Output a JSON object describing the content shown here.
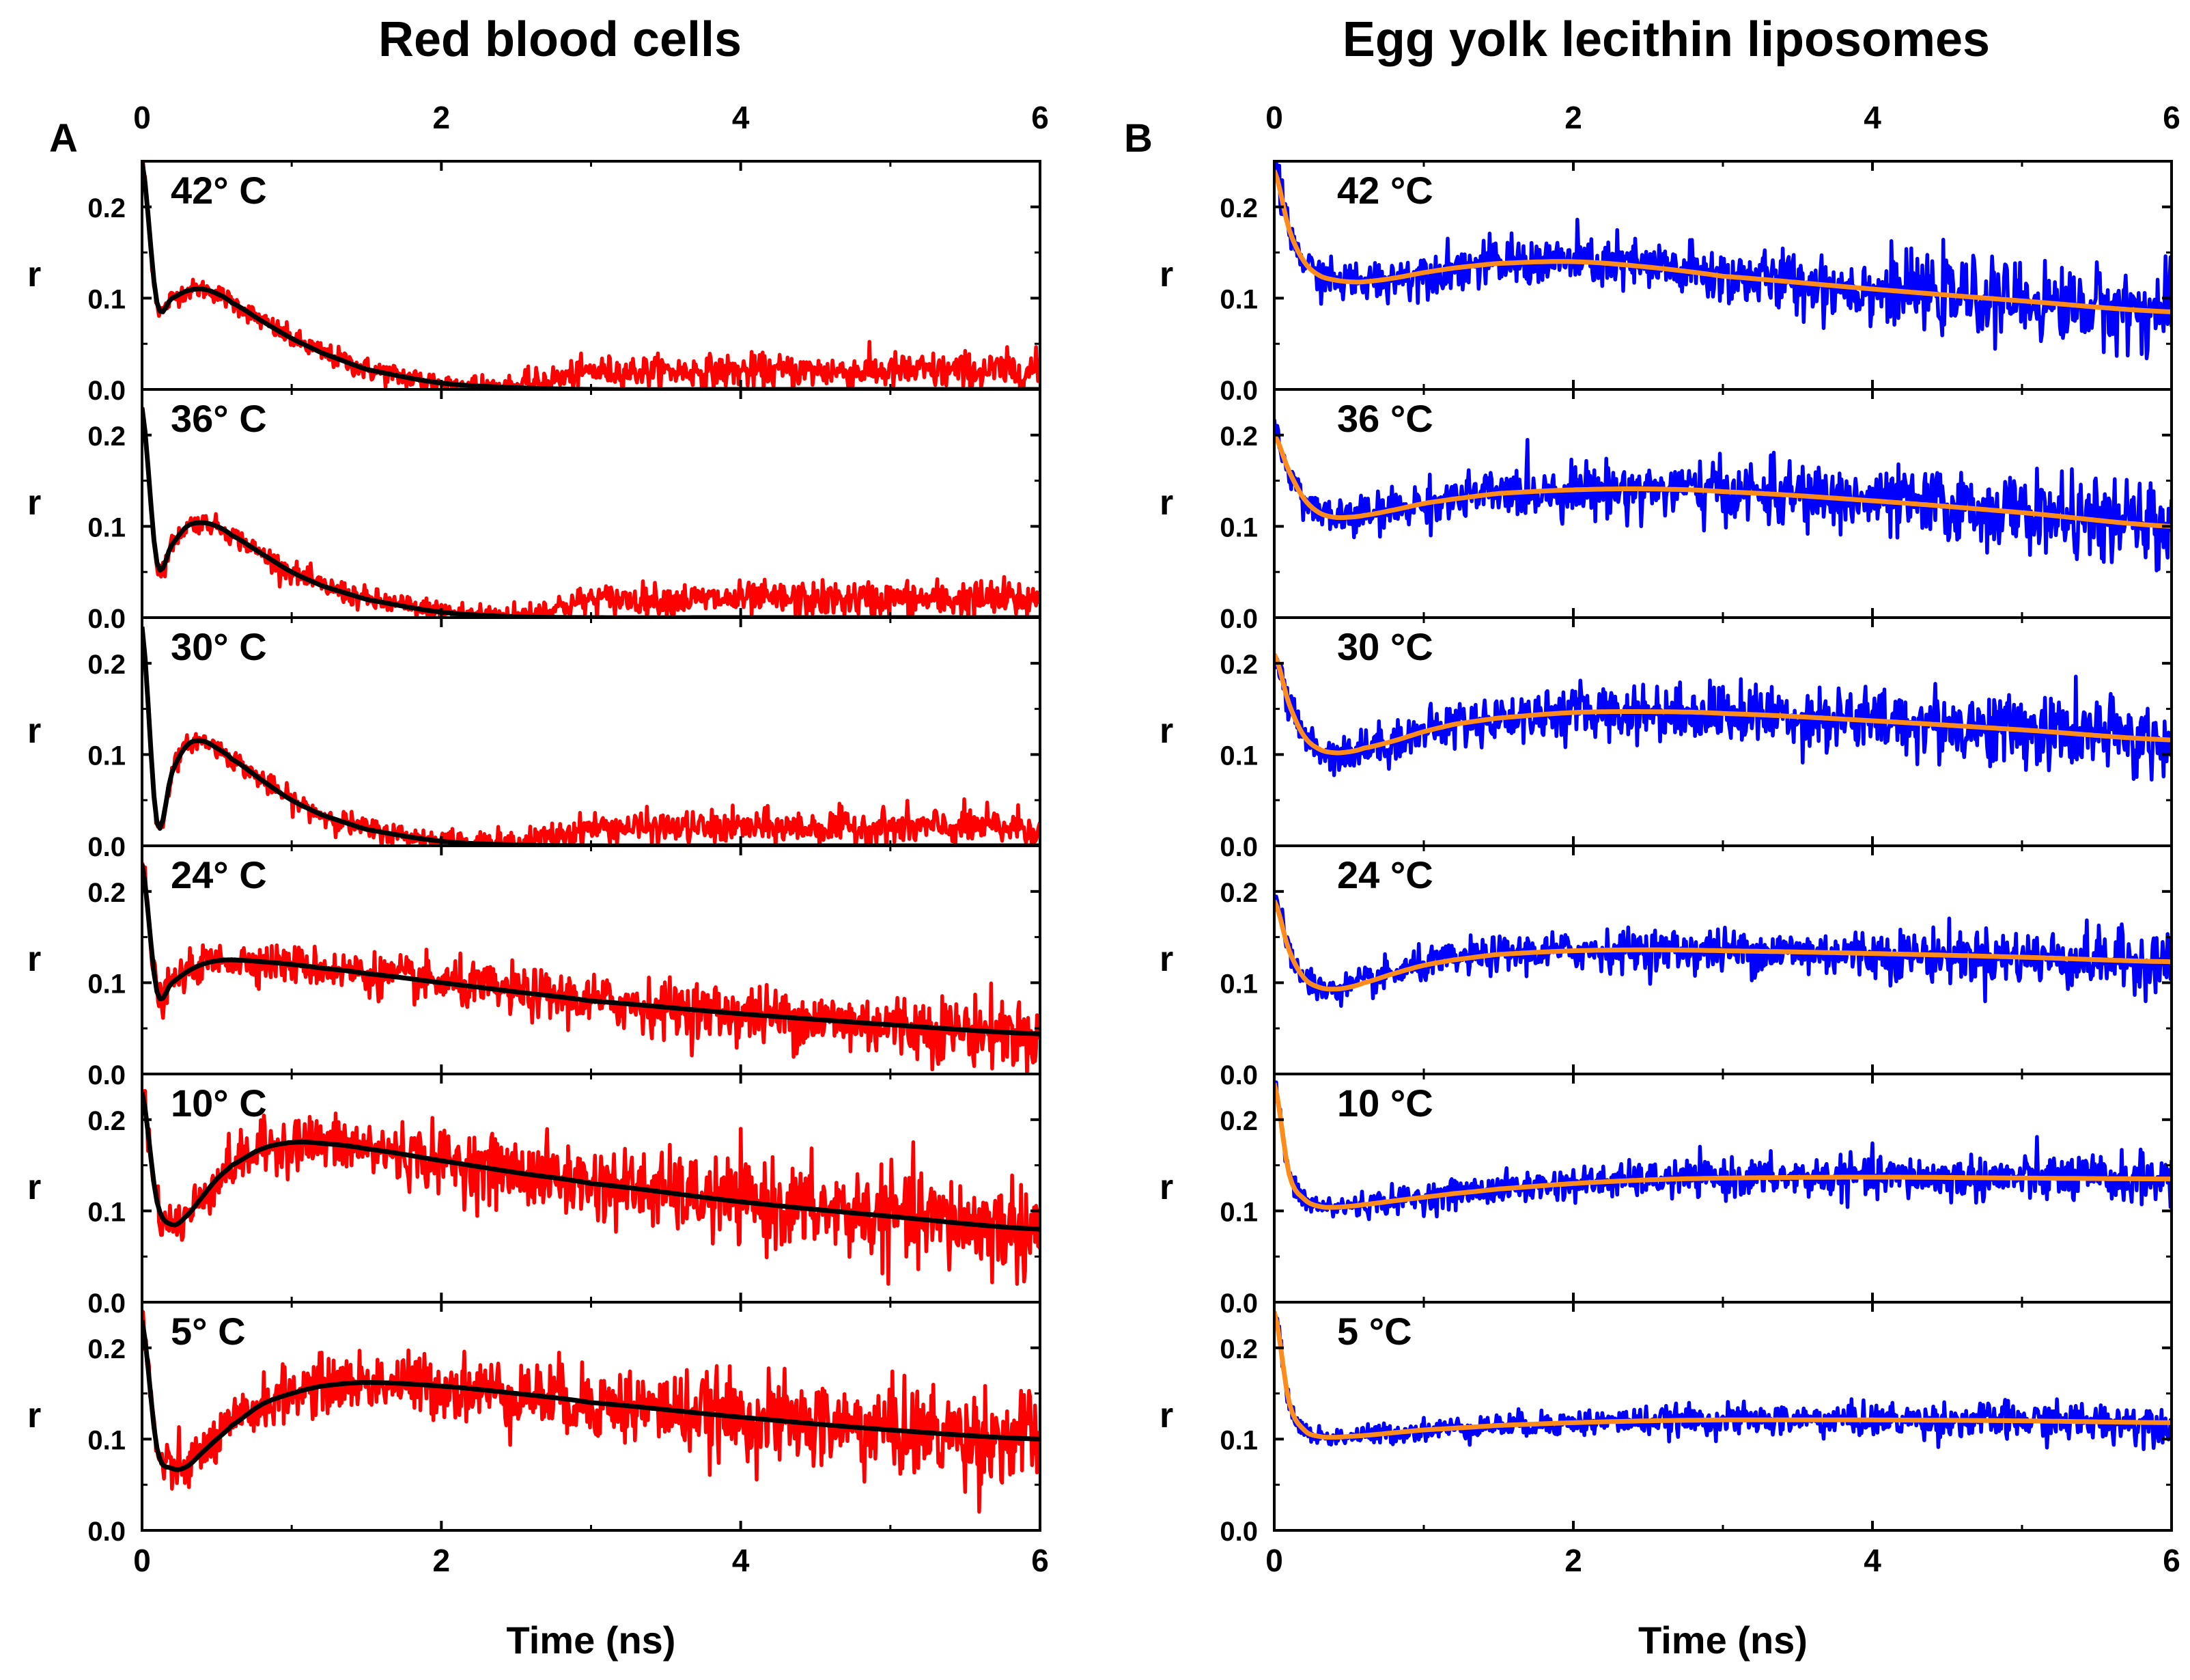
{
  "panels": [
    {
      "letter": "A",
      "title": "Red blood cells",
      "xlabel": "Time (ns)",
      "ylabel": "r",
      "data_color": "#ff0000",
      "fit_color": "#000000",
      "labels": [
        "42° C",
        "36° C",
        "30° C",
        "24° C",
        "10° C",
        "5° C"
      ]
    },
    {
      "letter": "B",
      "title": "Egg yolk lecithin liposomes",
      "xlabel": "Time (ns)",
      "ylabel": "r",
      "data_color": "#0000ff",
      "fit_color": "#ff8c1a",
      "labels": [
        "42 °C",
        "36 °C",
        "30 °C",
        "24 °C",
        "10 °C",
        "5 °C"
      ]
    }
  ],
  "chart_data": [
    {
      "type": "line",
      "title": "Red blood cells",
      "xlabel": "Time (ns)",
      "ylabel": "r",
      "xlim": [
        0,
        6
      ],
      "ylim": [
        0,
        0.25
      ],
      "xticks": [
        0,
        2,
        4,
        6
      ],
      "yticks": [
        0.0,
        0.1,
        0.2
      ],
      "fit_t": [
        0,
        0.1,
        0.2,
        0.3,
        0.4,
        0.5,
        0.6,
        0.8,
        1.0,
        1.2,
        1.5,
        2.0,
        2.5,
        3.0,
        4.0,
        5.0,
        6.0
      ],
      "series": [
        {
          "name": "42° C",
          "noise": 0.02,
          "fit": [
            0.25,
            0.095,
            0.1,
            0.108,
            0.11,
            0.105,
            0.095,
            0.075,
            0.056,
            0.04,
            0.022,
            0.007,
            0.002,
            0.0,
            0.0,
            0.0,
            0.0
          ],
          "data_offset_late": 0.02
        },
        {
          "name": "36° C",
          "noise": 0.02,
          "fit": [
            0.23,
            0.06,
            0.08,
            0.1,
            0.104,
            0.1,
            0.09,
            0.07,
            0.05,
            0.035,
            0.02,
            0.006,
            0.001,
            0.0,
            0.0,
            0.0,
            0.0
          ],
          "data_offset_late": 0.02
        },
        {
          "name": "30° C",
          "noise": 0.02,
          "fit": [
            0.24,
            0.025,
            0.08,
            0.11,
            0.115,
            0.107,
            0.095,
            0.072,
            0.05,
            0.034,
            0.018,
            0.005,
            0.001,
            0.0,
            0.0,
            0.0,
            0.0
          ],
          "data_offset_late": 0.02
        },
        {
          "name": "24° C",
          "noise": 0.035,
          "fit": [
            0.23,
            0.09,
            0.1,
            0.112,
            0.12,
            0.124,
            0.125,
            0.123,
            0.12,
            0.116,
            0.11,
            0.1,
            0.09,
            0.08,
            0.066,
            0.054,
            0.044
          ],
          "data_offset_late": 0.0
        },
        {
          "name": "10° C",
          "noise": 0.05,
          "fit": [
            0.23,
            0.11,
            0.085,
            0.095,
            0.115,
            0.135,
            0.15,
            0.168,
            0.175,
            0.174,
            0.168,
            0.155,
            0.142,
            0.13,
            0.11,
            0.094,
            0.08
          ],
          "data_offset_late": 0.0
        },
        {
          "name": "5° C",
          "noise": 0.05,
          "fit": [
            0.23,
            0.09,
            0.068,
            0.07,
            0.085,
            0.1,
            0.115,
            0.138,
            0.15,
            0.158,
            0.162,
            0.158,
            0.15,
            0.14,
            0.124,
            0.11,
            0.1
          ],
          "data_offset_late": 0.0
        }
      ]
    },
    {
      "type": "line",
      "title": "Egg yolk lecithin liposomes",
      "xlabel": "Time (ns)",
      "ylabel": "r",
      "xlim": [
        0,
        6
      ],
      "ylim": [
        0,
        0.25
      ],
      "xticks": [
        0,
        2,
        4,
        6
      ],
      "yticks": [
        0.0,
        0.1,
        0.2
      ],
      "fit_t": [
        0,
        0.1,
        0.2,
        0.3,
        0.4,
        0.5,
        0.6,
        0.8,
        1.0,
        1.2,
        1.5,
        2.0,
        2.5,
        3.0,
        4.0,
        5.0,
        6.0
      ],
      "series": [
        {
          "name": "42 °C",
          "noise": 0.04,
          "fit": [
            0.24,
            0.175,
            0.14,
            0.125,
            0.12,
            0.118,
            0.118,
            0.122,
            0.128,
            0.133,
            0.138,
            0.14,
            0.134,
            0.124,
            0.11,
            0.097,
            0.085
          ],
          "data_offset_late": 0.0
        },
        {
          "name": "36 °C",
          "noise": 0.04,
          "fit": [
            0.2,
            0.16,
            0.13,
            0.115,
            0.11,
            0.11,
            0.112,
            0.118,
            0.125,
            0.13,
            0.136,
            0.14,
            0.141,
            0.138,
            0.128,
            0.115,
            0.1
          ],
          "data_offset_late": 0.0
        },
        {
          "name": "30 °C",
          "noise": 0.04,
          "fit": [
            0.21,
            0.155,
            0.12,
            0.106,
            0.102,
            0.103,
            0.107,
            0.115,
            0.125,
            0.133,
            0.14,
            0.146,
            0.147,
            0.145,
            0.137,
            0.127,
            0.116
          ],
          "data_offset_late": 0.0
        },
        {
          "name": "24 °C",
          "noise": 0.03,
          "fit": [
            0.19,
            0.135,
            0.105,
            0.095,
            0.093,
            0.095,
            0.1,
            0.11,
            0.119,
            0.125,
            0.131,
            0.135,
            0.136,
            0.135,
            0.132,
            0.128,
            0.123
          ],
          "data_offset_late": 0.0
        },
        {
          "name": "10 °C",
          "noise": 0.025,
          "fit": [
            0.24,
            0.14,
            0.113,
            0.105,
            0.104,
            0.105,
            0.107,
            0.111,
            0.115,
            0.119,
            0.124,
            0.13,
            0.134,
            0.136,
            0.137,
            0.136,
            0.135
          ],
          "data_offset_late": 0.0
        },
        {
          "name": "5 °C",
          "noise": 0.02,
          "fit": [
            0.24,
            0.14,
            0.11,
            0.103,
            0.102,
            0.103,
            0.104,
            0.107,
            0.11,
            0.112,
            0.115,
            0.118,
            0.12,
            0.121,
            0.121,
            0.12,
            0.118
          ],
          "data_offset_late": 0.0
        }
      ]
    }
  ]
}
